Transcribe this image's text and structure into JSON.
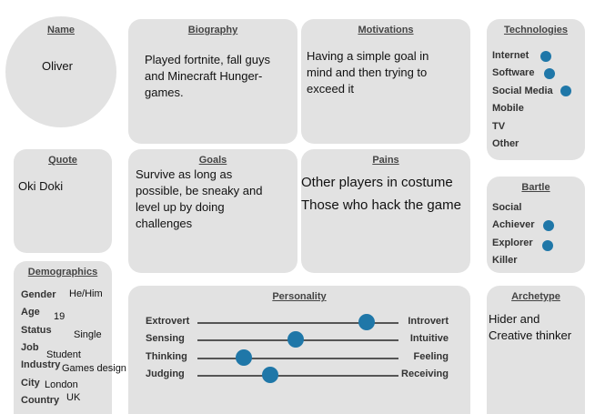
{
  "name": {
    "header": "Name",
    "value": "Oliver"
  },
  "biography": {
    "header": "Biography",
    "text": "Played fortnite, fall guys and Minecraft Hunger-games."
  },
  "motivations": {
    "header": "Motivations",
    "text": "Having a simple goal in mind and then trying to exceed it"
  },
  "technologies": {
    "header": "Technologies",
    "items": [
      {
        "label": "Internet",
        "marked": true
      },
      {
        "label": "Software",
        "marked": true
      },
      {
        "label": "Social Media",
        "marked": true
      },
      {
        "label": "Mobile",
        "marked": false
      },
      {
        "label": "TV",
        "marked": false
      },
      {
        "label": "Other",
        "marked": false
      }
    ]
  },
  "quote": {
    "header": "Quote",
    "text": "Oki Doki"
  },
  "goals": {
    "header": "Goals",
    "text": "Survive as long as possible, be sneaky and level up by doing challenges"
  },
  "pains": {
    "header": "Pains",
    "lines": [
      "Other players in costume",
      "Those who hack the game"
    ]
  },
  "bartle": {
    "header": "Bartle",
    "items": [
      {
        "label": "Social",
        "marked": false
      },
      {
        "label": "Achiever",
        "marked": true
      },
      {
        "label": "Explorer",
        "marked": true
      },
      {
        "label": "Killer",
        "marked": false
      }
    ]
  },
  "demographics": {
    "header": "Demographics",
    "rows": [
      {
        "label": "Gender",
        "value": "He/Him"
      },
      {
        "label": "Age",
        "value": "19"
      },
      {
        "label": "Status",
        "value": "Single"
      },
      {
        "label": "Job",
        "value": "Student"
      },
      {
        "label": "Industry",
        "value": "Games design"
      },
      {
        "label": "City",
        "value": "London"
      },
      {
        "label": "Country",
        "value": "UK"
      }
    ]
  },
  "personality": {
    "header": "Personality",
    "sliders": [
      {
        "left": "Extrovert",
        "right": "Introvert",
        "level": 0.84
      },
      {
        "left": "Sensing",
        "right": "Intuitive",
        "level": 0.49
      },
      {
        "left": "Thinking",
        "right": "Feeling",
        "level": 0.23
      },
      {
        "left": "Judging",
        "right": "Receiving",
        "level": 0.36
      }
    ]
  },
  "archetype": {
    "header": "Archetype",
    "text": "Hider and Creative thinker"
  },
  "colors": {
    "card": "#e2e2e2",
    "accent": "#1f77a8"
  }
}
